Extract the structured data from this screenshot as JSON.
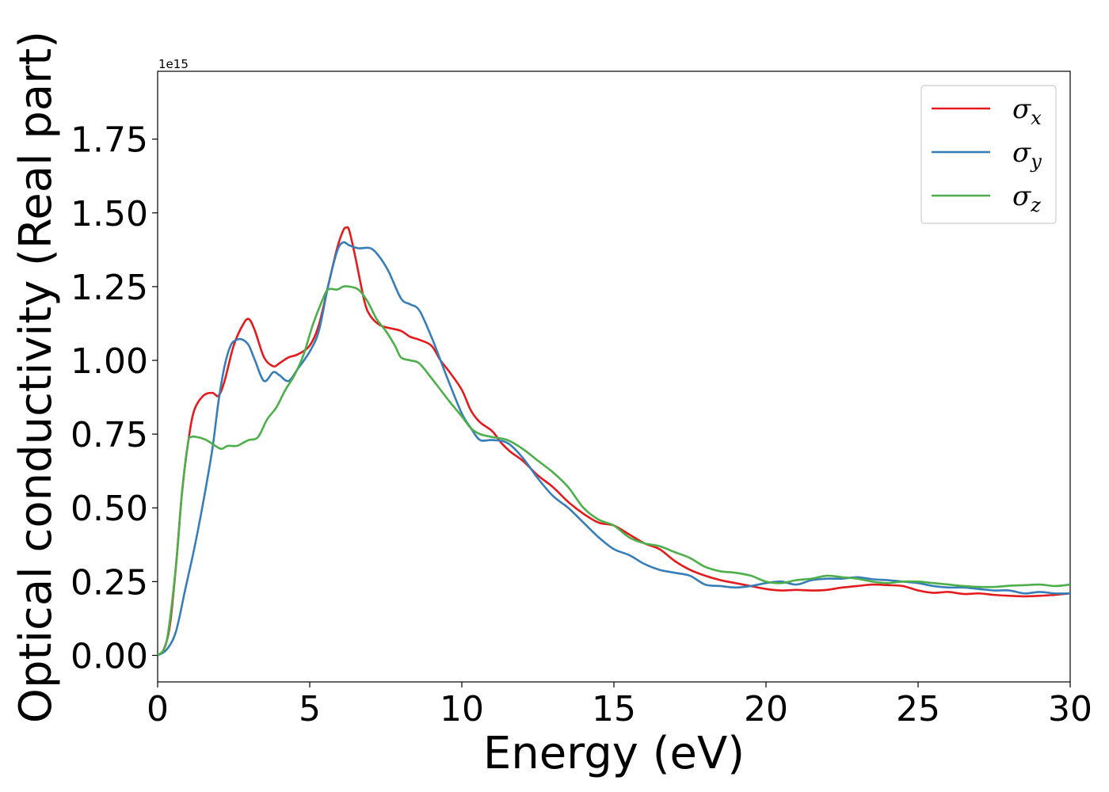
{
  "chart_data": {
    "type": "line",
    "title": "",
    "xlabel": "Energy (eV)",
    "ylabel": "Optical conductivity (Real part)",
    "y_offset_text": "1e15",
    "xlim": [
      0,
      30
    ],
    "ylim": [
      -0.09,
      1.98
    ],
    "xticks": [
      0,
      5,
      10,
      15,
      20,
      25,
      30
    ],
    "xtick_labels": [
      "0",
      "5",
      "10",
      "15",
      "20",
      "25",
      "30"
    ],
    "yticks": [
      0.0,
      0.25,
      0.5,
      0.75,
      1.0,
      1.25,
      1.5,
      1.75
    ],
    "ytick_labels": [
      "0.00",
      "0.25",
      "0.50",
      "0.75",
      "1.00",
      "1.25",
      "1.50",
      "1.75"
    ],
    "grid": false,
    "legend_position": "top-right",
    "series": [
      {
        "name": "σx",
        "symbol": "σ",
        "subscript": "x",
        "color": "#e41a1c",
        "x": [
          0,
          0.2,
          0.4,
          0.6,
          0.8,
          1.0,
          1.2,
          1.5,
          1.8,
          2.0,
          2.2,
          2.5,
          2.8,
          3.0,
          3.2,
          3.5,
          3.8,
          4.0,
          4.3,
          4.6,
          5.0,
          5.3,
          5.6,
          5.9,
          6.1,
          6.2,
          6.3,
          6.5,
          6.8,
          7.0,
          7.3,
          7.6,
          8.0,
          8.3,
          8.6,
          9.0,
          9.3,
          9.6,
          10.0,
          10.3,
          10.6,
          11.0,
          11.3,
          11.6,
          12.0,
          12.5,
          13.0,
          13.5,
          14.0,
          14.5,
          15.0,
          15.5,
          16.0,
          16.5,
          17.0,
          17.5,
          18.0,
          18.5,
          19.0,
          19.5,
          20.0,
          20.5,
          21.0,
          21.5,
          22.0,
          22.5,
          23.0,
          23.5,
          24.0,
          24.5,
          25.0,
          25.5,
          26.0,
          26.5,
          27.0,
          27.5,
          28.0,
          28.5,
          29.0,
          29.5,
          30.0
        ],
        "y": [
          0.0,
          0.02,
          0.1,
          0.3,
          0.55,
          0.72,
          0.83,
          0.88,
          0.89,
          0.88,
          0.93,
          1.05,
          1.12,
          1.14,
          1.1,
          1.01,
          0.98,
          0.99,
          1.01,
          1.02,
          1.05,
          1.12,
          1.25,
          1.38,
          1.44,
          1.45,
          1.44,
          1.35,
          1.2,
          1.15,
          1.12,
          1.11,
          1.1,
          1.08,
          1.07,
          1.05,
          1.0,
          0.96,
          0.9,
          0.83,
          0.79,
          0.76,
          0.72,
          0.69,
          0.66,
          0.61,
          0.57,
          0.52,
          0.48,
          0.45,
          0.44,
          0.41,
          0.38,
          0.36,
          0.32,
          0.29,
          0.27,
          0.255,
          0.245,
          0.235,
          0.225,
          0.22,
          0.222,
          0.22,
          0.222,
          0.23,
          0.235,
          0.24,
          0.238,
          0.235,
          0.22,
          0.212,
          0.215,
          0.208,
          0.21,
          0.205,
          0.202,
          0.2,
          0.202,
          0.205,
          0.21
        ]
      },
      {
        "name": "σy",
        "symbol": "σ",
        "subscript": "y",
        "color": "#377eb8",
        "x": [
          0,
          0.3,
          0.6,
          0.9,
          1.2,
          1.5,
          1.8,
          2.0,
          2.2,
          2.4,
          2.6,
          2.8,
          3.0,
          3.2,
          3.5,
          3.8,
          4.0,
          4.3,
          4.6,
          5.0,
          5.3,
          5.6,
          5.9,
          6.1,
          6.3,
          6.6,
          7.0,
          7.3,
          7.6,
          8.0,
          8.3,
          8.6,
          9.0,
          9.3,
          9.6,
          10.0,
          10.3,
          10.6,
          11.0,
          11.5,
          12.0,
          12.5,
          13.0,
          13.5,
          14.0,
          14.5,
          15.0,
          15.5,
          16.0,
          16.5,
          17.0,
          17.5,
          18.0,
          18.5,
          19.0,
          19.5,
          20.0,
          20.5,
          21.0,
          21.5,
          22.0,
          22.5,
          23.0,
          23.5,
          24.0,
          24.5,
          25.0,
          25.5,
          26.0,
          26.5,
          27.0,
          27.5,
          28.0,
          28.5,
          29.0,
          29.5,
          30.0
        ],
        "y": [
          0.0,
          0.02,
          0.08,
          0.22,
          0.36,
          0.52,
          0.7,
          0.86,
          0.98,
          1.05,
          1.07,
          1.07,
          1.05,
          1.0,
          0.93,
          0.96,
          0.95,
          0.93,
          0.97,
          1.03,
          1.1,
          1.25,
          1.37,
          1.4,
          1.39,
          1.38,
          1.38,
          1.35,
          1.3,
          1.21,
          1.19,
          1.17,
          1.08,
          1.0,
          0.92,
          0.82,
          0.77,
          0.73,
          0.73,
          0.72,
          0.67,
          0.6,
          0.54,
          0.5,
          0.45,
          0.4,
          0.36,
          0.34,
          0.31,
          0.29,
          0.28,
          0.27,
          0.24,
          0.235,
          0.23,
          0.235,
          0.245,
          0.25,
          0.24,
          0.255,
          0.26,
          0.26,
          0.265,
          0.258,
          0.255,
          0.25,
          0.245,
          0.235,
          0.23,
          0.23,
          0.225,
          0.22,
          0.22,
          0.21,
          0.215,
          0.21,
          0.21
        ]
      },
      {
        "name": "σz",
        "symbol": "σ",
        "subscript": "z",
        "color": "#4daf4a",
        "x": [
          0,
          0.3,
          0.6,
          0.8,
          1.0,
          1.1,
          1.3,
          1.6,
          1.9,
          2.1,
          2.3,
          2.6,
          2.8,
          3.0,
          3.3,
          3.6,
          3.9,
          4.2,
          4.5,
          4.8,
          5.1,
          5.4,
          5.6,
          5.9,
          6.1,
          6.3,
          6.6,
          6.9,
          7.2,
          7.5,
          7.8,
          8.0,
          8.3,
          8.6,
          9.0,
          9.3,
          9.6,
          10.0,
          10.3,
          10.6,
          11.0,
          11.5,
          12.0,
          12.5,
          13.0,
          13.5,
          14.0,
          14.5,
          15.0,
          15.5,
          16.0,
          16.5,
          17.0,
          17.5,
          18.0,
          18.5,
          19.0,
          19.5,
          20.0,
          20.5,
          21.0,
          21.5,
          22.0,
          22.5,
          23.0,
          23.5,
          24.0,
          24.5,
          25.0,
          25.5,
          26.0,
          26.5,
          27.0,
          27.5,
          28.0,
          28.5,
          29.0,
          29.5,
          30.0
        ],
        "y": [
          0.0,
          0.05,
          0.3,
          0.55,
          0.72,
          0.74,
          0.74,
          0.73,
          0.71,
          0.7,
          0.71,
          0.71,
          0.72,
          0.73,
          0.74,
          0.8,
          0.84,
          0.9,
          0.95,
          1.02,
          1.12,
          1.2,
          1.24,
          1.24,
          1.25,
          1.25,
          1.24,
          1.2,
          1.14,
          1.1,
          1.05,
          1.01,
          1.0,
          0.99,
          0.94,
          0.9,
          0.86,
          0.81,
          0.77,
          0.75,
          0.74,
          0.73,
          0.7,
          0.66,
          0.62,
          0.57,
          0.5,
          0.46,
          0.44,
          0.4,
          0.38,
          0.37,
          0.35,
          0.33,
          0.3,
          0.285,
          0.28,
          0.27,
          0.25,
          0.245,
          0.255,
          0.26,
          0.27,
          0.265,
          0.26,
          0.25,
          0.245,
          0.25,
          0.25,
          0.245,
          0.24,
          0.235,
          0.232,
          0.232,
          0.236,
          0.238,
          0.24,
          0.235,
          0.24
        ]
      }
    ]
  }
}
